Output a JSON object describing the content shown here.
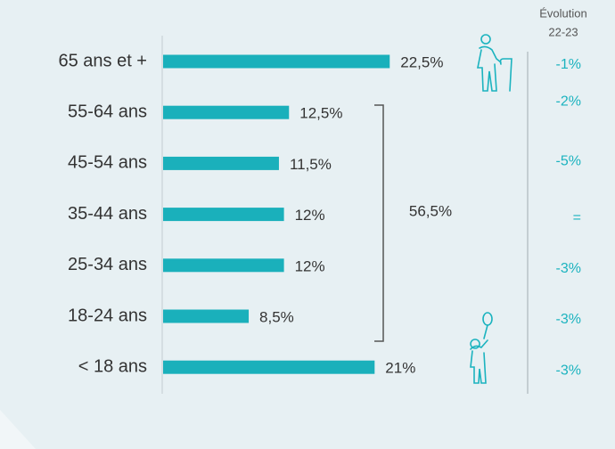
{
  "chart_data": {
    "type": "bar",
    "categories": [
      "65 ans et +",
      "55-64 ans",
      "45-54 ans",
      "35-44 ans",
      "25-34 ans",
      "18-24 ans",
      "< 18 ans"
    ],
    "values": [
      22.5,
      12.5,
      11.5,
      12,
      12,
      8.5,
      21
    ],
    "value_labels": [
      "22,5%",
      "12,5%",
      "11,5%",
      "12%",
      "12%",
      "8,5%",
      "21%"
    ],
    "color": "#1ab0bb",
    "annotation": "56,5%",
    "evolution": {
      "title": [
        "Évolution",
        "22-23"
      ],
      "labels": [
        "-1%",
        "-2%",
        "-5%",
        "=",
        "-3%",
        "-3%",
        "-3%"
      ]
    }
  }
}
